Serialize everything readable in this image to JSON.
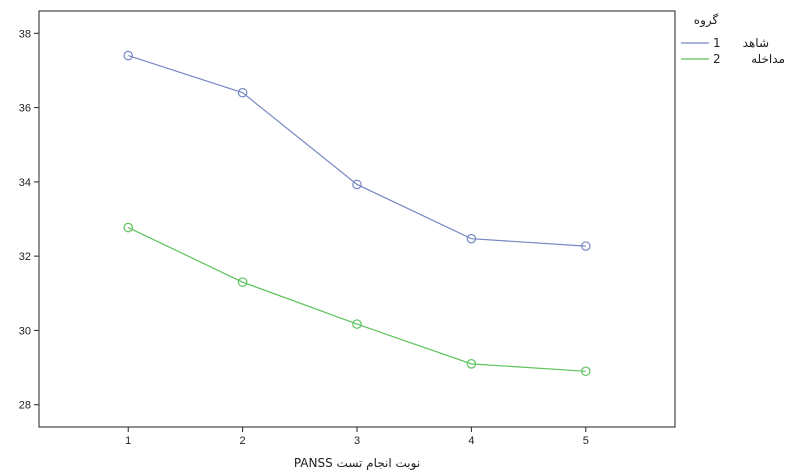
{
  "chart_data": {
    "type": "line",
    "xlabel": "نوبت انجام تست PANSS",
    "ylabel": "",
    "x": [
      1,
      2,
      3,
      4,
      5
    ],
    "xlim": [
      0.22,
      5.78
    ],
    "ylim": [
      27.4,
      38.6
    ],
    "yticks": [
      28,
      30,
      32,
      34,
      36,
      38
    ],
    "grid": false,
    "legend": {
      "title": "گروه",
      "position": "top-right",
      "items": [
        {
          "code": "1",
          "label": "شاهد"
        },
        {
          "code": "2",
          "label": "مداخله"
        }
      ]
    },
    "series": [
      {
        "name": "شاهد",
        "color": "#7788c4",
        "values": [
          37.4,
          36.4,
          33.93,
          32.47,
          32.27
        ]
      },
      {
        "name": "مداخله",
        "color": "#5cc35c",
        "values": [
          32.77,
          31.3,
          30.17,
          29.1,
          28.9
        ]
      }
    ]
  }
}
